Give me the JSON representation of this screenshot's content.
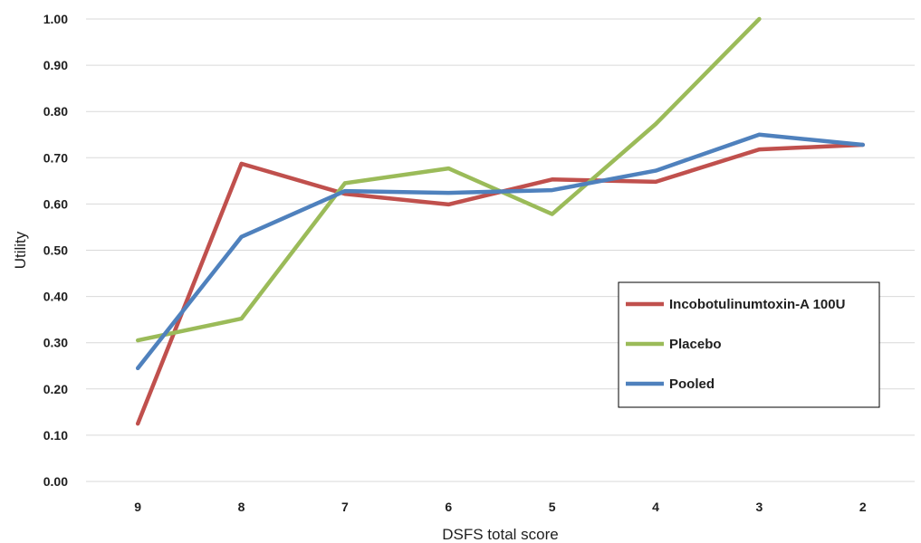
{
  "chart_data": {
    "type": "line",
    "title": "",
    "xlabel": "DSFS total score",
    "ylabel": "Utility",
    "categories": [
      "9",
      "8",
      "7",
      "6",
      "5",
      "4",
      "3",
      "2"
    ],
    "ylim": [
      0,
      1.0
    ],
    "ytick_labels": [
      "0.00",
      "0.10",
      "0.20",
      "0.30",
      "0.40",
      "0.50",
      "0.60",
      "0.70",
      "0.80",
      "0.90",
      "1.00"
    ],
    "grid": "horizontal",
    "legend_position": "right",
    "series": [
      {
        "name": "Incobotulinumtoxin-A 100U",
        "color": "#c0504d",
        "values": [
          0.125,
          0.687,
          0.622,
          0.599,
          0.653,
          0.648,
          0.718,
          0.728
        ]
      },
      {
        "name": "Placebo",
        "color": "#9bbb59",
        "values": [
          0.305,
          0.352,
          0.645,
          0.677,
          0.578,
          0.773,
          1.0,
          null
        ]
      },
      {
        "name": "Pooled",
        "color": "#4f81bd",
        "values": [
          0.245,
          0.529,
          0.628,
          0.624,
          0.63,
          0.672,
          0.75,
          0.728
        ]
      }
    ]
  }
}
